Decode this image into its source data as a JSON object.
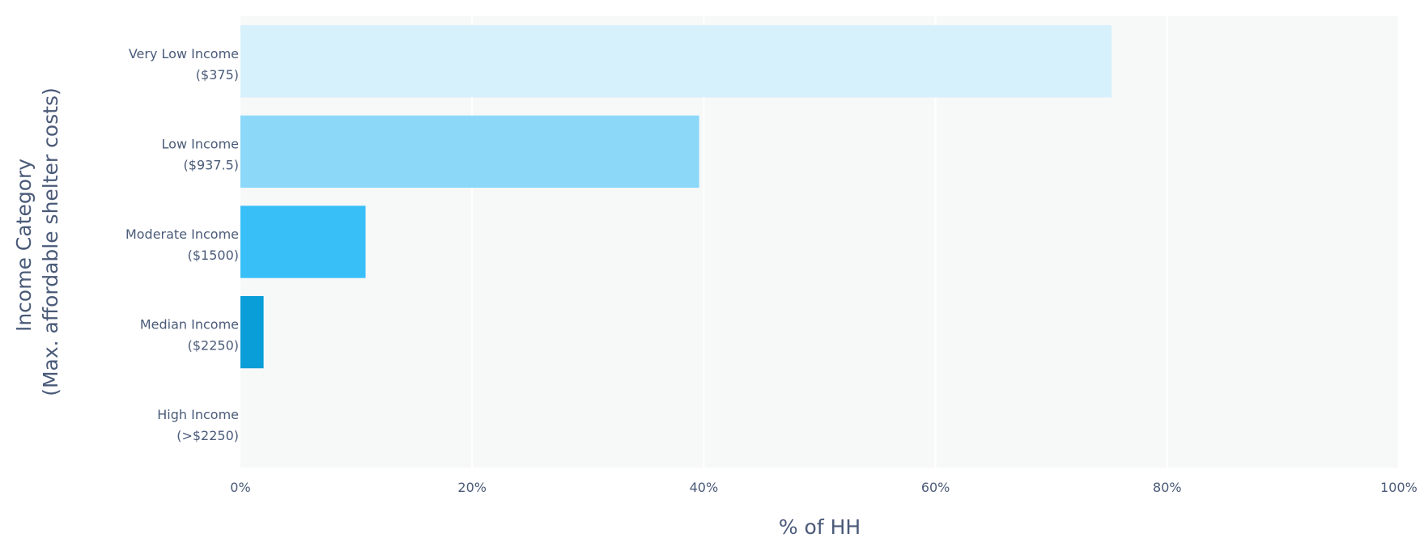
{
  "chart_data": {
    "type": "bar",
    "orientation": "horizontal",
    "title": "",
    "xlabel": "% of HH",
    "ylabel_lines": [
      "Income Category",
      "(Max. affordable shelter costs)"
    ],
    "xlim": [
      0,
      100
    ],
    "x_ticks": [
      0,
      20,
      40,
      60,
      80,
      100
    ],
    "x_tick_labels": [
      "0%",
      "20%",
      "40%",
      "60%",
      "80%",
      "100%"
    ],
    "grid": true,
    "categories": [
      {
        "line1": "Very Low Income",
        "line2": "($375)"
      },
      {
        "line1": "Low Income",
        "line2": "($937.5)"
      },
      {
        "line1": "Moderate Income",
        "line2": "($1500)"
      },
      {
        "line1": "Median Income",
        "line2": "($2250)"
      },
      {
        "line1": "High Income",
        "line2": "(>$2250)"
      }
    ],
    "values": [
      75.2,
      39.6,
      10.8,
      2.0,
      0
    ],
    "colors": [
      "#d6f0fc",
      "#8bd8f9",
      "#38bff8",
      "#0a9ed8",
      "#0a7fb0"
    ],
    "plot_background": "#f7f8f8",
    "gridline_color": "#ffffff"
  }
}
